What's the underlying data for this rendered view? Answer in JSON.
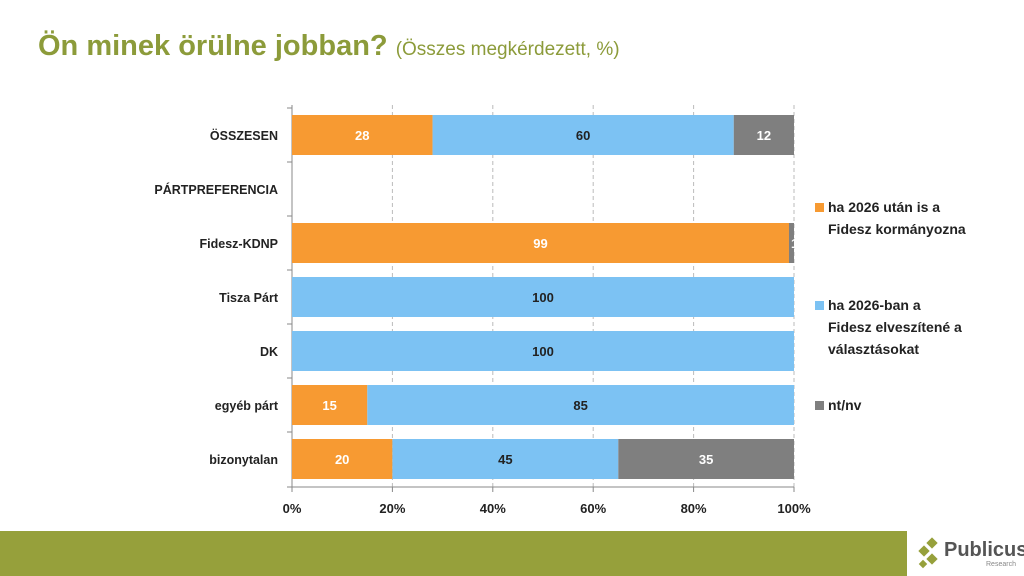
{
  "title": "Ön minek örülne jobban?",
  "subtitle": "(Összes megkérdezett, %)",
  "logo": {
    "name": "Publicus",
    "sub": "Research"
  },
  "chart_data": {
    "type": "bar",
    "orientation": "horizontal",
    "stacked": true,
    "categories": [
      "ÖSSZESEN",
      "PÁRTPREFERENCIA",
      "Fidesz-KDNP",
      "Tisza Párt",
      "DK",
      "egyéb párt",
      "bizonytalan"
    ],
    "series": [
      {
        "name": "ha 2026 után is a Fidesz kormányozna",
        "color": "#f79a32",
        "values": [
          28,
          null,
          99,
          0,
          0,
          15,
          20
        ]
      },
      {
        "name": "ha 2026-ban a Fidesz elveszítené a választásokat",
        "color": "#7cc2f3",
        "values": [
          60,
          null,
          0,
          100,
          100,
          85,
          45
        ]
      },
      {
        "name": "nt/nv",
        "color": "#7f7f7f",
        "values": [
          12,
          null,
          1,
          0,
          0,
          0,
          35
        ]
      }
    ],
    "xlim": [
      0,
      100
    ],
    "xticks": [
      "0%",
      "20%",
      "40%",
      "60%",
      "80%",
      "100%"
    ],
    "grid": "vertical-dashed",
    "legend": "right"
  }
}
